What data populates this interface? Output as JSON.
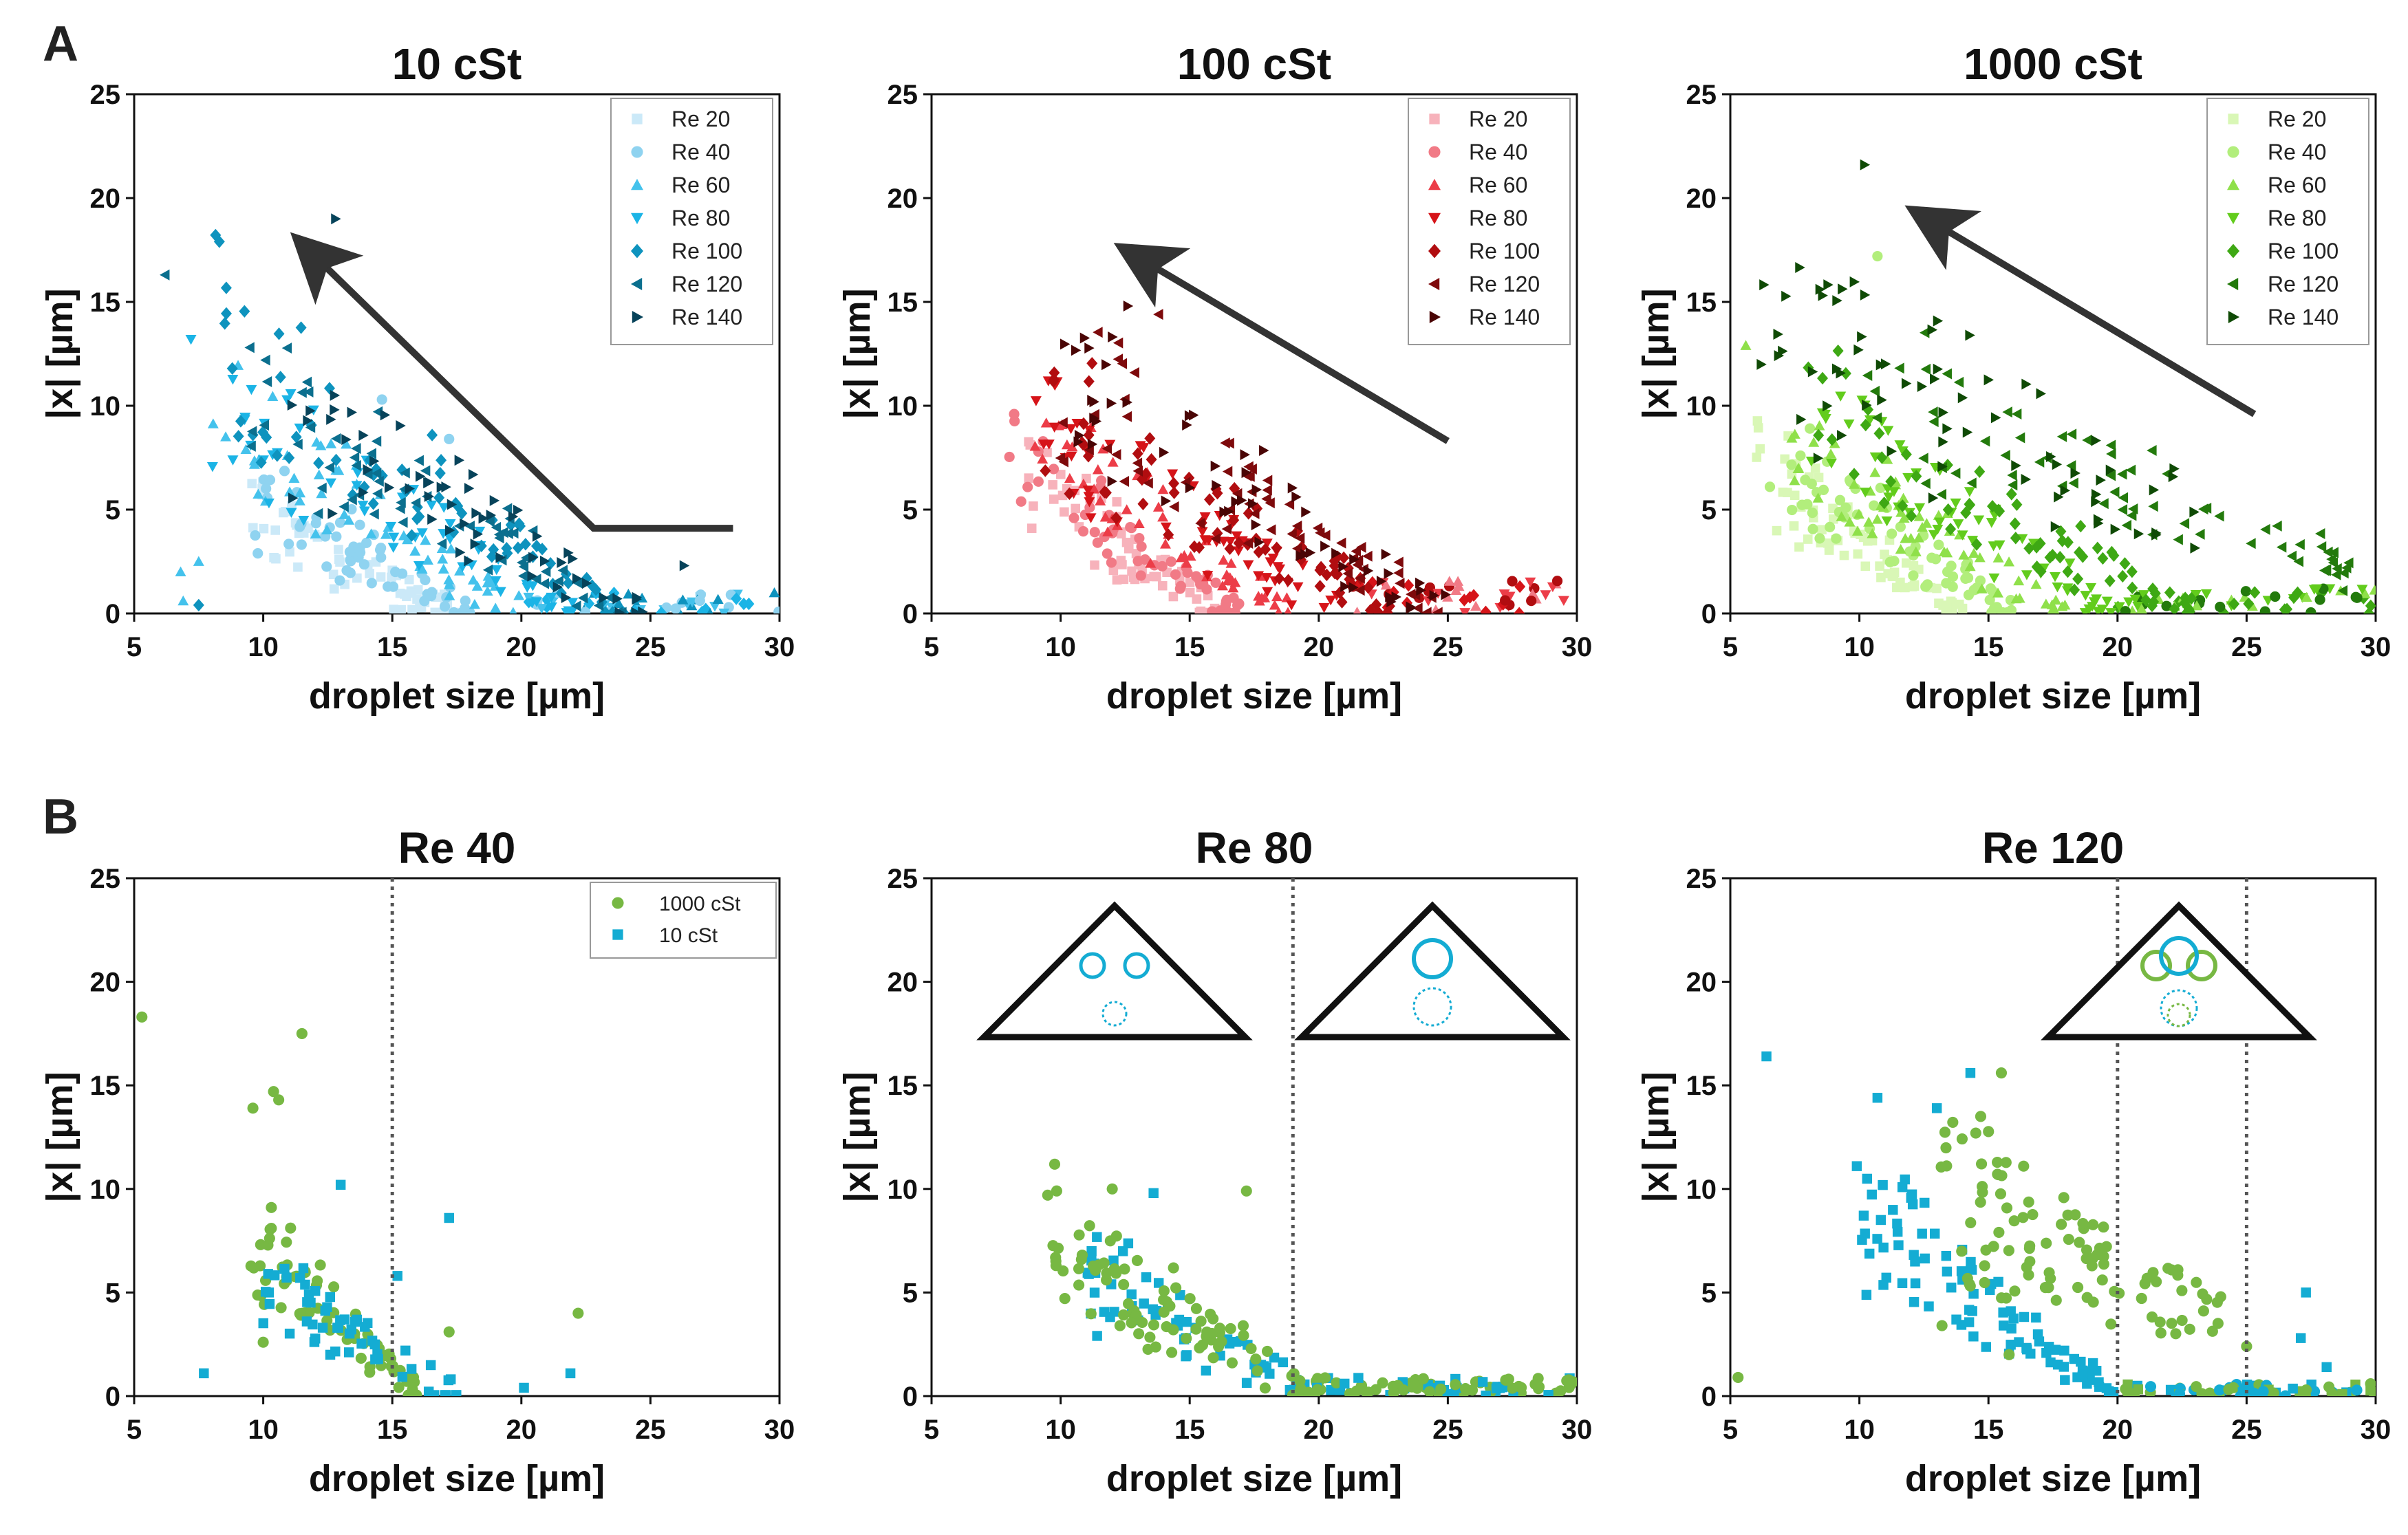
{
  "figure": {
    "panel_labels": [
      "A",
      "B"
    ]
  },
  "chart_data": [
    {
      "type": "scatter",
      "panel": "A",
      "title": "10 cSt",
      "xlabel": "droplet size [µm]",
      "ylabel": "|x| [µm]",
      "xlim": [
        5,
        30
      ],
      "ylim": [
        0,
        25
      ],
      "xticks": [
        5,
        10,
        15,
        20,
        25,
        30
      ],
      "yticks": [
        0,
        5,
        10,
        15,
        20,
        25
      ],
      "legend_position": "top-right",
      "arrow": [
        [
          28.2,
          4.1
        ],
        [
          22.8,
          4.1
        ],
        [
          12.0,
          17.2
        ]
      ],
      "series": [
        {
          "name": "Re 20",
          "marker": "square",
          "color": "#cbe9f8",
          "cluster": {
            "xRange": [
              9.5,
              17.5
            ],
            "decay": [
              10,
              6,
              17,
              0
            ],
            "n": 60
          },
          "points": []
        },
        {
          "name": "Re 40",
          "marker": "circle",
          "color": "#8fd3f0",
          "cluster": {
            "xRange": [
              9.5,
              18
            ],
            "decay": [
              10,
              7.5,
              18,
              0
            ],
            "n": 60
          },
          "points": [
            [
              17.2,
              8.4
            ],
            [
              14.6,
              10.3
            ]
          ]
        },
        {
          "name": "Re 60",
          "marker": "triangle-up",
          "color": "#44c2ec",
          "cluster": {
            "xRange": [
              8,
              20
            ],
            "decay": [
              9,
              12,
              20,
              0
            ],
            "n": 60
          },
          "points": [
            [
              6.8,
              2.0
            ],
            [
              7.5,
              2.5
            ],
            [
              6.9,
              0.6
            ]
          ]
        },
        {
          "name": "Re 80",
          "marker": "triangle-down",
          "color": "#1bb4e6",
          "cluster": {
            "xRange": [
              8,
              22
            ],
            "decay": [
              8,
              13.5,
              22,
              0
            ],
            "n": 60
          },
          "points": [
            [
              7.2,
              13.2
            ]
          ]
        },
        {
          "name": "Re 100",
          "marker": "diamond",
          "color": "#0e93be",
          "cluster": {
            "xRange": [
              8,
              24
            ],
            "decay": [
              8,
              17,
              24,
              0
            ],
            "n": 70
          },
          "points": [
            [
              8.3,
              17.9
            ],
            [
              7.5,
              0.4
            ]
          ]
        },
        {
          "name": "Re 120",
          "marker": "triangle-left",
          "color": "#0b6f8e",
          "cluster": {
            "xRange": [
              9,
              24
            ],
            "decay": [
              9,
              14.5,
              24,
              0
            ],
            "n": 70
          },
          "points": [
            [
              6.2,
              16.3
            ]
          ]
        },
        {
          "name": "Re 140",
          "marker": "triangle-right",
          "color": "#07435a",
          "cluster": {
            "xRange": [
              11,
              25
            ],
            "decay": [
              11,
              13,
              25,
              0
            ],
            "n": 60
          },
          "points": [
            [
              12.8,
              19.0
            ],
            [
              26.3,
              2.3
            ]
          ]
        }
      ],
      "tail": {
        "xRange": [
          20,
          30
        ],
        "yMax": 1.0,
        "colors": [
          "#1bb4e6",
          "#44c2ec",
          "#8fd3f0",
          "#0e93be"
        ],
        "n": 55
      }
    },
    {
      "type": "scatter",
      "panel": "A",
      "title": "100 cSt",
      "xlabel": "droplet size [µm]",
      "ylabel": "|x| [µm]",
      "xlim": [
        5,
        30
      ],
      "ylim": [
        0,
        25
      ],
      "xticks": [
        5,
        10,
        15,
        20,
        25,
        30
      ],
      "yticks": [
        0,
        5,
        10,
        15,
        20,
        25
      ],
      "legend_position": "top-right",
      "arrow": [
        [
          25.0,
          8.3
        ],
        [
          13.2,
          17.0
        ]
      ],
      "series": [
        {
          "name": "Re 20",
          "marker": "square",
          "color": "#f7b2bb",
          "cluster": {
            "xRange": [
              8.5,
              16
            ],
            "decay": [
              8.5,
              9,
              16,
              0
            ],
            "n": 60
          },
          "points": []
        },
        {
          "name": "Re 40",
          "marker": "circle",
          "color": "#f17a86",
          "cluster": {
            "xRange": [
              8,
              17
            ],
            "decay": [
              8,
              10,
              17,
              0
            ],
            "n": 55
          },
          "points": [
            [
              8.2,
              9.6
            ]
          ]
        },
        {
          "name": "Re 60",
          "marker": "triangle-up",
          "color": "#ec3d48",
          "cluster": {
            "xRange": [
              9,
              19
            ],
            "decay": [
              9,
              11,
              19,
              0
            ],
            "n": 55
          },
          "points": []
        },
        {
          "name": "Re 80",
          "marker": "triangle-down",
          "color": "#d61419",
          "cluster": {
            "xRange": [
              9,
              21
            ],
            "decay": [
              9,
              12.5,
              21,
              0
            ],
            "n": 60
          },
          "points": []
        },
        {
          "name": "Re 100",
          "marker": "diamond",
          "color": "#b10d10",
          "cluster": {
            "xRange": [
              9,
              23
            ],
            "decay": [
              9,
              13.5,
              23,
              0
            ],
            "n": 70
          },
          "points": []
        },
        {
          "name": "Re 120",
          "marker": "triangle-left",
          "color": "#7e0a0c",
          "cluster": {
            "xRange": [
              10,
              25
            ],
            "decay": [
              10,
              14,
              25,
              0
            ],
            "n": 70
          },
          "points": [
            [
              13.8,
              14.4
            ]
          ]
        },
        {
          "name": "Re 140",
          "marker": "triangle-right",
          "color": "#4a0505",
          "cluster": {
            "xRange": [
              10,
              25
            ],
            "decay": [
              10,
              14.5,
              25,
              0
            ],
            "n": 60
          },
          "points": [
            [
              12.6,
              14.8
            ]
          ]
        }
      ],
      "tail": {
        "xRange": [
          21,
          30
        ],
        "yMax": 1.6,
        "colors": [
          "#d61419",
          "#ec3d48",
          "#b10d10",
          "#f17a86"
        ],
        "n": 50
      }
    },
    {
      "type": "scatter",
      "panel": "A",
      "title": "1000 cSt",
      "xlabel": "droplet size [µm]",
      "ylabel": "|x| [µm]",
      "xlim": [
        5,
        30
      ],
      "ylim": [
        0,
        25
      ],
      "xticks": [
        5,
        10,
        15,
        20,
        25,
        30
      ],
      "yticks": [
        0,
        5,
        10,
        15,
        20,
        25
      ],
      "legend_position": "top-right",
      "arrow": [
        [
          25.3,
          9.6
        ],
        [
          12.9,
          18.8
        ]
      ],
      "series": [
        {
          "name": "Re 20",
          "marker": "square",
          "color": "#d9f7b6",
          "cluster": {
            "xRange": [
              6,
              14
            ],
            "decay": [
              6,
              9,
              14,
              0
            ],
            "n": 70
          },
          "points": []
        },
        {
          "name": "Re 40",
          "marker": "circle",
          "color": "#b2ee7c",
          "cluster": {
            "xRange": [
              6.5,
              16
            ],
            "decay": [
              6.5,
              10,
              16,
              0
            ],
            "n": 70
          },
          "points": [
            [
              10.7,
              17.2
            ]
          ]
        },
        {
          "name": "Re 60",
          "marker": "triangle-up",
          "color": "#8fe04a",
          "cluster": {
            "xRange": [
              7,
              18
            ],
            "decay": [
              7,
              11,
              18,
              0
            ],
            "n": 65
          },
          "points": [
            [
              5.6,
              12.9
            ]
          ]
        },
        {
          "name": "Re 80",
          "marker": "triangle-down",
          "color": "#62cc1c",
          "cluster": {
            "xRange": [
              8,
              20
            ],
            "decay": [
              8,
              12,
              20,
              0
            ],
            "n": 65
          },
          "points": []
        },
        {
          "name": "Re 100",
          "marker": "diamond",
          "color": "#3ea814",
          "cluster": {
            "xRange": [
              8,
              23
            ],
            "decay": [
              8,
              12.5,
              23,
              0
            ],
            "n": 70
          },
          "points": []
        },
        {
          "name": "Re 120",
          "marker": "triangle-left",
          "color": "#237a0c",
          "cluster": {
            "xRange": [
              10,
              29
            ],
            "decay": [
              10,
              15,
              29,
              2.5
            ],
            "n": 75
          },
          "points": []
        },
        {
          "name": "Re 140",
          "marker": "triangle-right",
          "color": "#0f4a05",
          "cluster": {
            "xRange": [
              6,
              24
            ],
            "decay": [
              6,
              18,
              24,
              5.5
            ],
            "n": 70
          },
          "points": [
            [
              10.2,
              21.6
            ]
          ]
        }
      ],
      "tail": {
        "xRange": [
          20,
          30
        ],
        "yMax": 1.2,
        "colors": [
          "#3ea814",
          "#62cc1c",
          "#237a0c",
          "#8fe04a"
        ],
        "n": 60
      }
    },
    {
      "type": "scatter",
      "panel": "B",
      "title": "Re 40",
      "xlabel": "droplet size [µm]",
      "ylabel": "|x| [µm]",
      "xlim": [
        5,
        30
      ],
      "ylim": [
        0,
        25
      ],
      "xticks": [
        5,
        10,
        15,
        20,
        25,
        30
      ],
      "yticks": [
        0,
        5,
        10,
        15,
        20,
        25
      ],
      "legend_position": "top-right",
      "vlines": [
        15.0
      ],
      "series": [
        {
          "name": "1000 cSt",
          "marker": "circle",
          "color": "#77b843",
          "cluster": {
            "xRange": [
              9.5,
              16
            ],
            "decay": [
              9.5,
              9.5,
              16,
              0
            ],
            "n": 70
          },
          "points": [
            [
              5.3,
              18.3
            ],
            [
              11.5,
              17.5
            ],
            [
              10.4,
              14.7
            ],
            [
              10.6,
              14.3
            ],
            [
              9.6,
              13.9
            ],
            [
              22.2,
              4.0
            ],
            [
              17.2,
              3.1
            ],
            [
              10.0,
              2.6
            ]
          ]
        },
        {
          "name": "10 cSt",
          "marker": "square",
          "color": "#14acd3",
          "cluster": {
            "xRange": [
              10,
              17.5
            ],
            "decay": [
              10,
              7,
              17.5,
              0
            ],
            "n": 55
          },
          "points": [
            [
              7.7,
              1.1
            ],
            [
              13.0,
              10.2
            ],
            [
              17.2,
              8.6
            ],
            [
              15.2,
              5.8
            ],
            [
              20.1,
              0.4
            ],
            [
              21.9,
              1.1
            ]
          ]
        }
      ]
    },
    {
      "type": "scatter",
      "panel": "B",
      "title": "Re 80",
      "xlabel": "droplet size [µm]",
      "ylabel": "|x| [µm]",
      "xlim": [
        5,
        30
      ],
      "ylim": [
        0,
        25
      ],
      "xticks": [
        5,
        10,
        15,
        20,
        25,
        30
      ],
      "yticks": [
        0,
        5,
        10,
        15,
        20,
        25
      ],
      "vlines": [
        19.0
      ],
      "series": [
        {
          "name": "10 cSt",
          "marker": "square",
          "color": "#14acd3",
          "cluster": {
            "xRange": [
              11,
              20
            ],
            "decay": [
              11,
              8,
              20,
              0
            ],
            "n": 60
          },
          "points": [
            [
              11.2,
              7.0
            ],
            [
              13.6,
              9.8
            ]
          ]
        },
        {
          "name": "1000 cSt",
          "marker": "circle",
          "color": "#77b843",
          "cluster": {
            "xRange": [
              9.5,
              20
            ],
            "decay": [
              9.5,
              10.3,
              20,
              0
            ],
            "n": 90
          },
          "points": [
            [
              9.5,
              9.7
            ],
            [
              12.3,
              3.4
            ],
            [
              17.2,
              9.9
            ],
            [
              12.0,
              10.0
            ]
          ]
        }
      ],
      "tail": {
        "xRange": [
          19,
          30
        ],
        "yMax": 0.9,
        "colors": [
          "#77b843",
          "#77b843",
          "#14acd3"
        ],
        "n": 90
      }
    },
    {
      "type": "scatter",
      "panel": "B",
      "title": "Re 120",
      "xlabel": "droplet size [µm]",
      "ylabel": "|x| [µm]",
      "xlim": [
        5,
        30
      ],
      "ylim": [
        0,
        25
      ],
      "xticks": [
        5,
        10,
        15,
        20,
        25,
        30
      ],
      "yticks": [
        0,
        5,
        10,
        15,
        20,
        25
      ],
      "vlines": [
        20.0,
        25.0
      ],
      "series": [
        {
          "name": "10 cSt",
          "marker": "square",
          "color": "#14acd3",
          "cluster": {
            "xRange": [
              10,
              20
            ],
            "decay": [
              10,
              12,
              20,
              0
            ],
            "n": 90
          },
          "points": [
            [
              6.4,
              16.4
            ],
            [
              10.7,
              14.4
            ],
            [
              9.9,
              11.1
            ],
            [
              13.0,
              13.9
            ],
            [
              14.3,
              15.6
            ],
            [
              27.3,
              5.0
            ],
            [
              27.1,
              2.8
            ],
            [
              28.1,
              1.4
            ]
          ]
        },
        {
          "name": "1000 cSt",
          "marker": "circle",
          "color": "#77b843",
          "cluster": {
            "xRange": [
              13,
              24
            ],
            "decay": [
              13,
              13.5,
              24,
              4.5
            ],
            "n": 100
          },
          "points": [
            [
              5.3,
              0.9
            ],
            [
              15.5,
              15.6
            ],
            [
              14.7,
              13.5
            ],
            [
              13.2,
              3.4
            ],
            [
              15.8,
              2.0
            ],
            [
              25.0,
              2.4
            ]
          ]
        }
      ],
      "tail": {
        "xRange": [
          20,
          30
        ],
        "yMax": 0.6,
        "colors": [
          "#77b843",
          "#14acd3"
        ],
        "n": 70
      }
    }
  ]
}
